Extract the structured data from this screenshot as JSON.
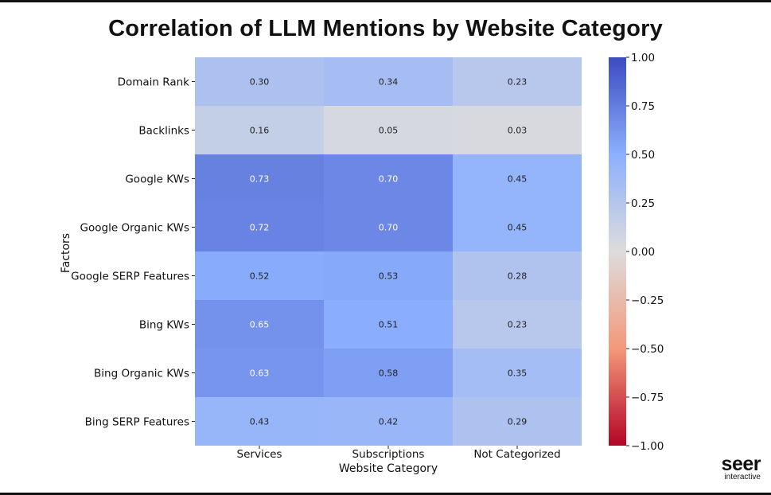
{
  "chart_data": {
    "type": "heatmap",
    "title": "Correlation of LLM Mentions by Website Category",
    "xlabel": "Website Category",
    "ylabel": "Factors",
    "x_categories": [
      "Services",
      "Subscriptions",
      "Not Categorized"
    ],
    "y_categories": [
      "Domain Rank",
      "Backlinks",
      "Google KWs",
      "Google Organic KWs",
      "Google SERP Features",
      "Bing KWs",
      "Bing Organic KWs",
      "Bing SERP Features"
    ],
    "values": [
      [
        0.3,
        0.34,
        0.23
      ],
      [
        0.16,
        0.05,
        0.03
      ],
      [
        0.73,
        0.7,
        0.45
      ],
      [
        0.72,
        0.7,
        0.45
      ],
      [
        0.52,
        0.53,
        0.28
      ],
      [
        0.65,
        0.51,
        0.23
      ],
      [
        0.63,
        0.58,
        0.35
      ],
      [
        0.43,
        0.42,
        0.29
      ]
    ],
    "value_labels": [
      [
        "0.30",
        "0.34",
        "0.23"
      ],
      [
        "0.16",
        "0.05",
        "0.03"
      ],
      [
        "0.73",
        "0.70",
        "0.45"
      ],
      [
        "0.72",
        "0.70",
        "0.45"
      ],
      [
        "0.52",
        "0.53",
        "0.28"
      ],
      [
        "0.65",
        "0.51",
        "0.23"
      ],
      [
        "0.63",
        "0.58",
        "0.35"
      ],
      [
        "0.43",
        "0.42",
        "0.29"
      ]
    ],
    "colorbar": {
      "range": [
        -1.0,
        1.0
      ],
      "colormap": "coolwarm",
      "ticks": [
        1.0,
        0.75,
        0.5,
        0.25,
        0.0,
        -0.25,
        -0.5,
        -0.75,
        -1.0
      ],
      "tick_labels": [
        "1.00",
        "0.75",
        "0.50",
        "0.25",
        "0.00",
        "−0.25",
        "−0.50",
        "−0.75",
        "−1.00"
      ]
    }
  },
  "branding": {
    "logo_main": "seer",
    "logo_sub": "interactive"
  }
}
